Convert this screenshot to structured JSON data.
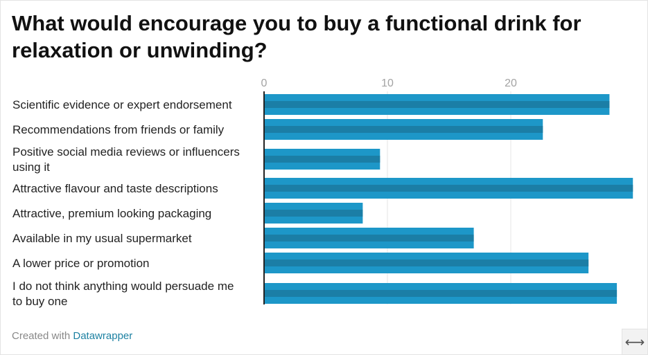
{
  "title": "What would encourage you to buy a functional drink for relaxation or unwinding?",
  "footer": {
    "prefix": "Created with ",
    "brand": "Datawrapper"
  },
  "resize_icon": {
    "name": "resize-horizontal-icon",
    "glyph": "⟷"
  },
  "colors": {
    "bar": "#1d97c8",
    "bar_stripe": "#1b7ea6",
    "axis": "#222222",
    "grid": "#e6e6e6",
    "brand": "#1d81a2"
  },
  "chart_data": {
    "type": "bar",
    "orientation": "horizontal",
    "categories": [
      [
        "Scientific evidence or expert endorsement"
      ],
      [
        "Recommendations from friends or family"
      ],
      [
        "Positive social media reviews or influencers",
        "using it"
      ],
      [
        "Attractive flavour and taste descriptions"
      ],
      [
        "Attractive, premium looking packaging"
      ],
      [
        "Available in my usual supermarket"
      ],
      [
        "A lower price or promotion"
      ],
      [
        "I do not think anything would persuade me",
        "to buy one"
      ]
    ],
    "values": [
      28,
      22.6,
      9.4,
      29.9,
      8,
      17,
      26.3,
      28.6
    ],
    "xlim": [
      0,
      30
    ],
    "xticks": [
      0,
      10,
      20
    ],
    "tick_position": "top",
    "grid": true,
    "xlabel": "",
    "ylabel": ""
  }
}
